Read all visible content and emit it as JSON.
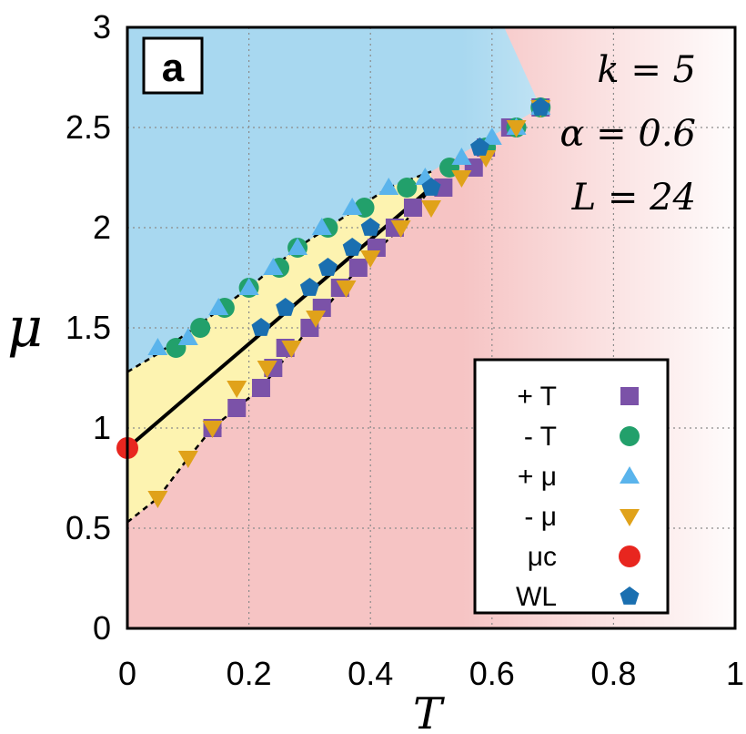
{
  "chart_data": {
    "type": "scatter",
    "panel_label": "a",
    "xlabel": "T",
    "ylabel": "μ",
    "xlim": [
      0,
      1
    ],
    "ylim": [
      0,
      3
    ],
    "x_ticks": [
      "0",
      "0.2",
      "0.4",
      "0.6",
      "0.8",
      "1"
    ],
    "y_ticks": [
      "0",
      "0.5",
      "1",
      "1.5",
      "2",
      "2.5",
      "3"
    ],
    "grid": true,
    "annotations": [
      "k = 5",
      "α = 0.6",
      "L = 24"
    ],
    "legend_position": "bottom-right",
    "colors": {
      "region_top": "#a8d8f0",
      "region_bottom": "#f6c4c4",
      "region_middle": "#fdf3b0",
      "plus_T": "#7b52a8",
      "minus_T": "#22a06b",
      "plus_mu": "#5ab4ec",
      "minus_mu": "#e0a21a",
      "mu_c": "#e8261f",
      "WL": "#1a6fb0"
    },
    "series": [
      {
        "legend": "+ T",
        "marker": "square",
        "points": [
          [
            0.14,
            1.0
          ],
          [
            0.18,
            1.1
          ],
          [
            0.22,
            1.2
          ],
          [
            0.24,
            1.3
          ],
          [
            0.26,
            1.4
          ],
          [
            0.3,
            1.5
          ],
          [
            0.32,
            1.6
          ],
          [
            0.35,
            1.7
          ],
          [
            0.38,
            1.8
          ],
          [
            0.41,
            1.9
          ],
          [
            0.44,
            2.0
          ],
          [
            0.47,
            2.1
          ],
          [
            0.52,
            2.2
          ],
          [
            0.57,
            2.3
          ],
          [
            0.59,
            2.4
          ],
          [
            0.63,
            2.5
          ],
          [
            0.68,
            2.6
          ]
        ]
      },
      {
        "legend": "- T",
        "marker": "circle",
        "points": [
          [
            0.08,
            1.4
          ],
          [
            0.12,
            1.5
          ],
          [
            0.16,
            1.6
          ],
          [
            0.2,
            1.7
          ],
          [
            0.25,
            1.8
          ],
          [
            0.28,
            1.9
          ],
          [
            0.33,
            2.0
          ],
          [
            0.39,
            2.1
          ],
          [
            0.46,
            2.2
          ],
          [
            0.53,
            2.3
          ],
          [
            0.59,
            2.4
          ],
          [
            0.64,
            2.5
          ],
          [
            0.68,
            2.6
          ]
        ]
      },
      {
        "legend": "+ μ",
        "marker": "triangle-up",
        "points": [
          [
            0.05,
            1.4
          ],
          [
            0.1,
            1.45
          ],
          [
            0.15,
            1.6
          ],
          [
            0.2,
            1.7
          ],
          [
            0.24,
            1.8
          ],
          [
            0.28,
            1.9
          ],
          [
            0.32,
            2.0
          ],
          [
            0.37,
            2.1
          ],
          [
            0.43,
            2.2
          ],
          [
            0.49,
            2.25
          ],
          [
            0.55,
            2.35
          ],
          [
            0.6,
            2.45
          ],
          [
            0.64,
            2.5
          ],
          [
            0.68,
            2.6
          ]
        ]
      },
      {
        "legend": "- μ",
        "marker": "triangle-down",
        "points": [
          [
            0.05,
            0.65
          ],
          [
            0.1,
            0.85
          ],
          [
            0.14,
            1.0
          ],
          [
            0.18,
            1.2
          ],
          [
            0.23,
            1.3
          ],
          [
            0.27,
            1.4
          ],
          [
            0.31,
            1.55
          ],
          [
            0.36,
            1.7
          ],
          [
            0.4,
            1.85
          ],
          [
            0.45,
            2.0
          ],
          [
            0.5,
            2.1
          ],
          [
            0.55,
            2.25
          ],
          [
            0.59,
            2.35
          ],
          [
            0.64,
            2.5
          ],
          [
            0.68,
            2.6
          ]
        ]
      },
      {
        "legend": "μc",
        "marker": "circle-large",
        "points": [
          [
            0.0,
            0.9
          ]
        ]
      },
      {
        "legend": "WL",
        "marker": "pentagon",
        "points": [
          [
            0.22,
            1.5
          ],
          [
            0.26,
            1.6
          ],
          [
            0.3,
            1.7
          ],
          [
            0.33,
            1.8
          ],
          [
            0.37,
            1.9
          ],
          [
            0.4,
            2.0
          ],
          [
            0.5,
            2.2
          ],
          [
            0.58,
            2.4
          ],
          [
            0.68,
            2.6
          ]
        ]
      }
    ],
    "solid_line": [
      [
        0.0,
        0.9
      ],
      [
        0.5,
        2.2
      ]
    ],
    "upper_dashed_boundary": [
      [
        0.0,
        1.28
      ],
      [
        0.05,
        1.37
      ],
      [
        0.12,
        1.52
      ],
      [
        0.2,
        1.7
      ],
      [
        0.28,
        1.9
      ],
      [
        0.36,
        2.06
      ],
      [
        0.43,
        2.2
      ],
      [
        0.5,
        2.28
      ]
    ],
    "lower_dashed_boundary": [
      [
        0.0,
        0.53
      ],
      [
        0.05,
        0.65
      ],
      [
        0.1,
        0.85
      ],
      [
        0.14,
        1.0
      ],
      [
        0.22,
        1.2
      ],
      [
        0.3,
        1.5
      ],
      [
        0.38,
        1.8
      ],
      [
        0.45,
        2.0
      ],
      [
        0.5,
        2.2
      ]
    ]
  }
}
